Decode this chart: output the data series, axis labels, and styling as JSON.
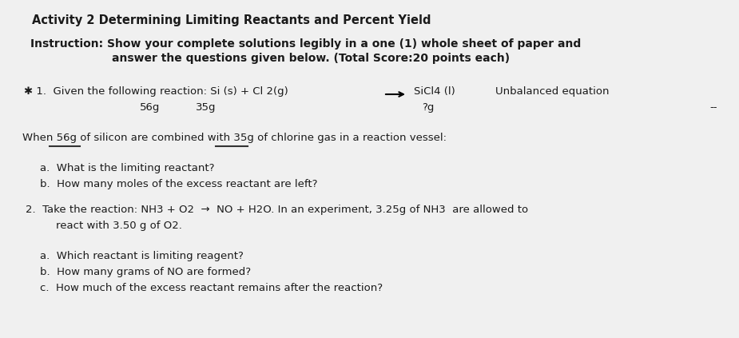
{
  "bg_color": "#f0f0f0",
  "text_color": "#1a1a1a",
  "title": "Activity 2 Determining Limiting Reactants and Percent Yield",
  "instruction_line1": "Instruction: Show your complete solutions legibly in a one (1) whole sheet of paper and",
  "instruction_line2": "answer the questions given below. (Total Score:20 points each)",
  "q1_prefix": "✱ 1.  Given the following reaction: Si (s) + Cl 2(g)",
  "q1_product": "SiCl4 (l)",
  "q1_unbalanced": "Unbalanced equation",
  "q1_56g": "56g",
  "q1_35g": "35g",
  "q1_qg": "?g",
  "q1_dashes": "--",
  "q1_when": "When 56g of silicon are combined with 35g of chlorine gas in a reaction vessel:",
  "q1a": "a.  What is the limiting reactant?",
  "q1b": "b.  How many moles of the excess reactant are left?",
  "q2_line1": "2.  Take the reaction: NH3 + O2  →  NO + H2O. In an experiment, 3.25g of NH3  are allowed to",
  "q2_line2": "react with 3.50 g of O2.",
  "q2a": "a.  Which reactant is limiting reagent?",
  "q2b": "b.  How many grams of NO are formed?",
  "q2c": "c.  How much of the excess reactant remains after the reaction?"
}
